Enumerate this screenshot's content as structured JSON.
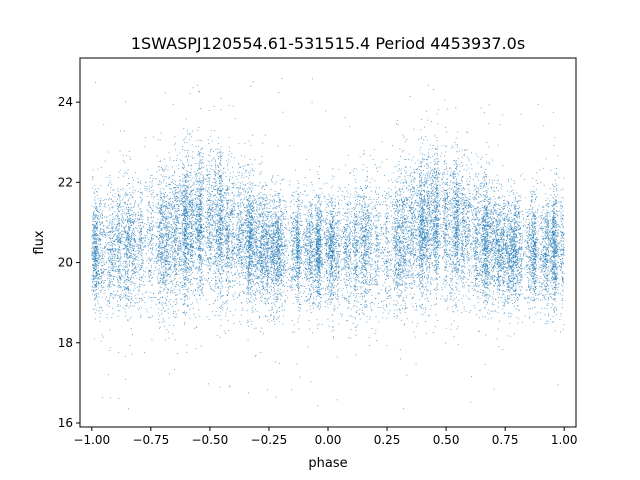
{
  "chart_data": {
    "type": "scatter",
    "title": "1SWASPJ120554.61-531515.4 Period 4453937.0s",
    "xlabel": "phase",
    "ylabel": "flux",
    "xlim": [
      -1.05,
      1.05
    ],
    "ylim": [
      15.9,
      25.1
    ],
    "xticks": [
      -1.0,
      -0.75,
      -0.5,
      -0.25,
      0.0,
      0.25,
      0.5,
      0.75,
      1.0
    ],
    "xtick_labels": [
      "−1.00",
      "−0.75",
      "−0.50",
      "−0.25",
      "0.00",
      "0.25",
      "0.50",
      "0.75",
      "1.00"
    ],
    "yticks": [
      16,
      18,
      20,
      22,
      24
    ],
    "ytick_labels": [
      "16",
      "18",
      "20",
      "22",
      "24"
    ],
    "grid": false,
    "legend": "none",
    "marker_color": "#1f77b4",
    "x_range": [
      -1.0,
      1.0
    ],
    "flux_median": 20.5,
    "flux_typical_range": [
      18.8,
      22.2
    ],
    "flux_outlier_range": [
      16.3,
      24.7
    ],
    "approx_point_count": 20000,
    "profile": [
      {
        "phase": -1.0,
        "flux_center": 20.3,
        "flux_spread": 0.7
      },
      {
        "phase": -0.75,
        "flux_center": 20.4,
        "flux_spread": 0.9
      },
      {
        "phase": -0.55,
        "flux_center": 21.0,
        "flux_spread": 0.9
      },
      {
        "phase": -0.5,
        "flux_center": 21.0,
        "flux_spread": 0.9
      },
      {
        "phase": -0.25,
        "flux_center": 20.3,
        "flux_spread": 0.7
      },
      {
        "phase": 0.0,
        "flux_center": 20.3,
        "flux_spread": 0.7
      },
      {
        "phase": 0.25,
        "flux_center": 20.4,
        "flux_spread": 0.9
      },
      {
        "phase": 0.45,
        "flux_center": 21.0,
        "flux_spread": 0.9
      },
      {
        "phase": 0.5,
        "flux_center": 21.0,
        "flux_spread": 0.9
      },
      {
        "phase": 0.75,
        "flux_center": 20.3,
        "flux_spread": 0.7
      },
      {
        "phase": 1.0,
        "flux_center": 20.3,
        "flux_spread": 0.7
      }
    ]
  }
}
